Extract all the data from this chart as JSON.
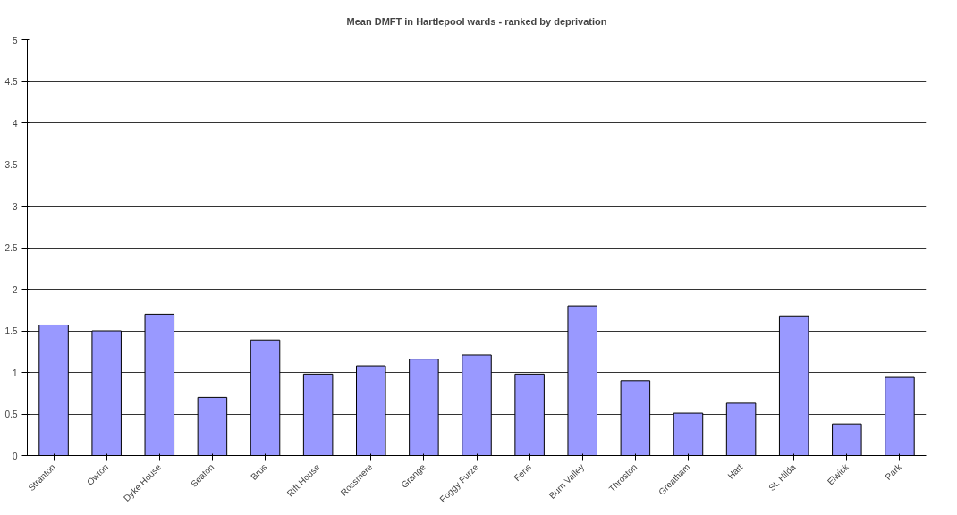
{
  "chart_data": {
    "type": "bar",
    "title": "Mean DMFT in Hartlepool wards - ranked by deprivation",
    "categories": [
      "Stranton",
      "Owton",
      "Dyke House",
      "Seaton",
      "Brus",
      "Rift House",
      "Rossmere",
      "Grange",
      "Foggy Furze",
      "Fens",
      "Burn Valley",
      "Throston",
      "Greatham",
      "Hart",
      "St. Hilda",
      "Elwick",
      "Park"
    ],
    "values": [
      1.57,
      1.5,
      1.7,
      0.7,
      1.39,
      0.98,
      1.08,
      1.16,
      1.21,
      0.98,
      1.8,
      0.9,
      0.51,
      0.63,
      1.68,
      0.38,
      0.94
    ],
    "color": "#9999ff",
    "ylim": [
      0,
      5
    ],
    "yticks": [
      0,
      0.5,
      1,
      1.5,
      2,
      2.5,
      3,
      3.5,
      4,
      4.5,
      5
    ],
    "grid": "y"
  }
}
